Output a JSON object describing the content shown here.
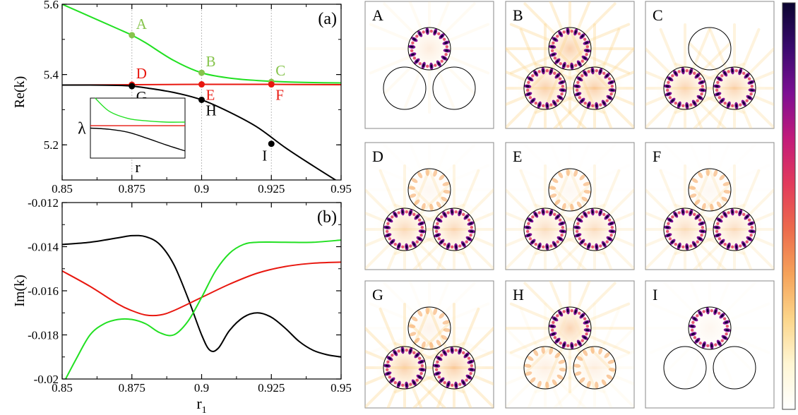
{
  "colors": {
    "green": "#22e022",
    "light_green": "#86c44c",
    "red": "#e8170f",
    "black": "#000000",
    "gridline": "#bbbbbb",
    "colormap": [
      "#ffffff",
      "#fff6d4",
      "#fbd58a",
      "#f5a25a",
      "#ec6a4c",
      "#e23a5c",
      "#c21a7a",
      "#7d0f93",
      "#3a0a6e",
      "#0b0530"
    ]
  },
  "chart_data": [
    {
      "type": "line",
      "panel_label": "(a)",
      "xlabel": "",
      "ylabel": "Re(k)",
      "xlim": [
        0.85,
        0.95
      ],
      "ylim": [
        5.1,
        5.6
      ],
      "xticks": [
        "0.85",
        "0.875",
        "0.9",
        "0.925",
        "0.95"
      ],
      "yticks": [
        "5.2",
        "5.4",
        "5.6"
      ],
      "vlines": [
        0.875,
        0.9,
        0.925
      ],
      "series": [
        {
          "color": "green",
          "x": [
            0.85,
            0.86,
            0.87,
            0.875,
            0.88,
            0.89,
            0.9,
            0.91,
            0.92,
            0.93,
            0.94,
            0.95
          ],
          "y": [
            5.6,
            5.565,
            5.53,
            5.512,
            5.49,
            5.44,
            5.405,
            5.39,
            5.383,
            5.379,
            5.377,
            5.376
          ]
        },
        {
          "color": "red",
          "x": [
            0.85,
            0.875,
            0.9,
            0.925,
            0.95
          ],
          "y": [
            5.37,
            5.371,
            5.372,
            5.372,
            5.371
          ]
        },
        {
          "color": "black",
          "x": [
            0.85,
            0.86,
            0.87,
            0.875,
            0.88,
            0.89,
            0.9,
            0.91,
            0.92,
            0.93,
            0.94,
            0.95
          ],
          "y": [
            5.37,
            5.37,
            5.369,
            5.367,
            5.362,
            5.349,
            5.328,
            5.293,
            5.25,
            5.192,
            5.14,
            5.09
          ]
        }
      ],
      "points": [
        {
          "label": "A",
          "x": 0.875,
          "y": 5.512,
          "color": "light_green",
          "label_pos": "above-right"
        },
        {
          "label": "B",
          "x": 0.9,
          "y": 5.405,
          "color": "light_green",
          "label_pos": "above-right"
        },
        {
          "label": "C",
          "x": 0.925,
          "y": 5.379,
          "color": "light_green",
          "label_pos": "above-right"
        },
        {
          "label": "D",
          "x": 0.875,
          "y": 5.371,
          "color": "red",
          "label_pos": "above-right"
        },
        {
          "label": "E",
          "x": 0.9,
          "y": 5.372,
          "color": "red",
          "label_pos": "below-right"
        },
        {
          "label": "F",
          "x": 0.925,
          "y": 5.372,
          "color": "red",
          "label_pos": "below-right"
        },
        {
          "label": "G",
          "x": 0.875,
          "y": 5.367,
          "color": "black",
          "label_pos": "below-right"
        },
        {
          "label": "H",
          "x": 0.9,
          "y": 5.328,
          "color": "black",
          "label_pos": "below-right"
        },
        {
          "label": "I",
          "x": 0.925,
          "y": 5.203,
          "color": "black",
          "label_pos": "below-left"
        }
      ],
      "inset": {
        "ylabel": "λ",
        "xlabel": "r",
        "series": [
          {
            "color": "green",
            "x": [
              0.05,
              0.2,
              0.4,
              0.6,
              0.8,
              1.0
            ],
            "y": [
              1.0,
              0.78,
              0.66,
              0.62,
              0.6,
              0.6
            ]
          },
          {
            "color": "red",
            "x": [
              0.0,
              1.0
            ],
            "y": [
              0.54,
              0.54
            ]
          },
          {
            "color": "black",
            "x": [
              0.0,
              0.2,
              0.4,
              0.6,
              0.8,
              1.0
            ],
            "y": [
              0.5,
              0.48,
              0.43,
              0.33,
              0.22,
              0.12
            ]
          }
        ]
      }
    },
    {
      "type": "line",
      "panel_label": "(b)",
      "xlabel": "r1",
      "ylabel": "Im(k)",
      "xlim": [
        0.85,
        0.95
      ],
      "ylim": [
        -0.02,
        -0.012
      ],
      "xticks": [
        "0.85",
        "0.875",
        "0.9",
        "0.925",
        "0.95"
      ],
      "yticks": [
        "-0.02",
        "-0.018",
        "-0.016",
        "-0.014",
        "-0.012"
      ],
      "series": [
        {
          "color": "black",
          "x": [
            0.85,
            0.86,
            0.87,
            0.875,
            0.88,
            0.885,
            0.89,
            0.895,
            0.9,
            0.903,
            0.906,
            0.91,
            0.915,
            0.92,
            0.925,
            0.93,
            0.935,
            0.94,
            0.945,
            0.95
          ],
          "y": [
            -0.0139,
            -0.0138,
            -0.0136,
            -0.0135,
            -0.01355,
            -0.0139,
            -0.0148,
            -0.0163,
            -0.018,
            -0.0187,
            -0.0186,
            -0.0178,
            -0.0172,
            -0.017,
            -0.0172,
            -0.0177,
            -0.0183,
            -0.0187,
            -0.0189,
            -0.019
          ]
        },
        {
          "color": "red",
          "x": [
            0.85,
            0.86,
            0.87,
            0.875,
            0.88,
            0.885,
            0.89,
            0.9,
            0.91,
            0.92,
            0.93,
            0.94,
            0.95
          ],
          "y": [
            -0.0151,
            -0.0158,
            -0.0166,
            -0.0169,
            -0.0171,
            -0.0171,
            -0.0169,
            -0.0163,
            -0.0157,
            -0.0152,
            -0.0149,
            -0.01475,
            -0.0147
          ]
        },
        {
          "color": "green",
          "x": [
            0.85,
            0.855,
            0.86,
            0.865,
            0.87,
            0.875,
            0.88,
            0.885,
            0.89,
            0.895,
            0.9,
            0.905,
            0.91,
            0.915,
            0.92,
            0.93,
            0.94,
            0.95
          ],
          "y": [
            -0.0203,
            -0.0191,
            -0.018,
            -0.0175,
            -0.0173,
            -0.0173,
            -0.0175,
            -0.0179,
            -0.018,
            -0.0174,
            -0.0163,
            -0.0151,
            -0.0143,
            -0.0139,
            -0.0138,
            -0.0138,
            -0.0138,
            -0.0137
          ]
        }
      ]
    },
    {
      "type": "heatmap",
      "panels": [
        {
          "label": "A",
          "mode": [
            1,
            0,
            0
          ],
          "halo": 0.3,
          "ring_clarity": [
            1,
            1,
            1
          ]
        },
        {
          "label": "B",
          "mode": [
            1,
            1,
            1
          ],
          "halo": 1.0,
          "ring_clarity": [
            1,
            1,
            1
          ]
        },
        {
          "label": "C",
          "mode": [
            0,
            1,
            1
          ],
          "halo": 0.8,
          "ring_clarity": [
            1,
            1,
            1
          ]
        },
        {
          "label": "D",
          "mode": [
            0.1,
            1,
            1
          ],
          "halo": 0.7,
          "ring_clarity": [
            1,
            1,
            1
          ]
        },
        {
          "label": "E",
          "mode": [
            0.1,
            1,
            1
          ],
          "halo": 0.6,
          "ring_clarity": [
            1,
            1,
            1
          ]
        },
        {
          "label": "F",
          "mode": [
            0.1,
            1,
            1
          ],
          "halo": 0.6,
          "ring_clarity": [
            1,
            1,
            1
          ]
        },
        {
          "label": "G",
          "mode": [
            0.15,
            1,
            1
          ],
          "halo": 1.0,
          "ring_clarity": [
            1,
            1,
            1
          ]
        },
        {
          "label": "H",
          "mode": [
            1,
            0.3,
            0.3
          ],
          "halo": 0.8,
          "ring_clarity": [
            1,
            1,
            1
          ]
        },
        {
          "label": "I",
          "mode": [
            0.9,
            0,
            0
          ],
          "halo": 0.1,
          "ring_clarity": [
            1,
            1,
            1
          ]
        }
      ]
    }
  ]
}
